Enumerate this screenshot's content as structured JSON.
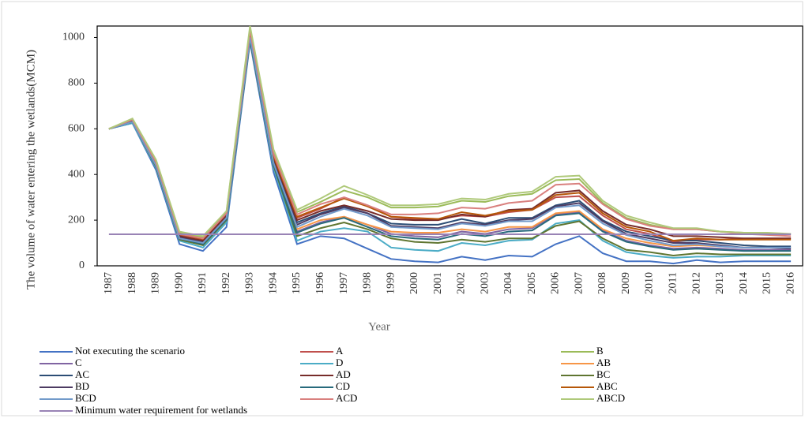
{
  "chart_data": {
    "type": "line",
    "y_label": "The volume of water entering  the wetlands(MCM)",
    "x_label": "Year",
    "categories": [
      "1987",
      "1988",
      "1989",
      "1990",
      "1991",
      "1992",
      "1993",
      "1994",
      "1995",
      "1996",
      "1997",
      "1998",
      "1999",
      "2000",
      "2001",
      "2002",
      "2003",
      "2004",
      "2005",
      "2006",
      "2007",
      "2008",
      "2009",
      "2010",
      "2011",
      "2012",
      "2013",
      "2014",
      "2015",
      "2016"
    ],
    "ylim": [
      0,
      1050
    ],
    "yticks": [
      0,
      200,
      400,
      600,
      800,
      1000
    ],
    "series": [
      {
        "name": "Not executing the scenario",
        "color": "#4472c4",
        "values": [
          600,
          625,
          420,
          95,
          65,
          170,
          980,
          410,
          95,
          130,
          120,
          75,
          30,
          20,
          15,
          40,
          25,
          45,
          40,
          95,
          130,
          55,
          20,
          20,
          10,
          25,
          15,
          20,
          20,
          20
        ]
      },
      {
        "name": "A",
        "color": "#c0504d",
        "values": [
          600,
          635,
          450,
          135,
          115,
          225,
          1015,
          475,
          210,
          250,
          300,
          265,
          215,
          205,
          205,
          220,
          215,
          235,
          245,
          300,
          305,
          220,
          160,
          140,
          105,
          115,
          115,
          120,
          120,
          120
        ]
      },
      {
        "name": "B",
        "color": "#9bbb59",
        "values": [
          600,
          640,
          460,
          145,
          125,
          235,
          1040,
          500,
          235,
          280,
          330,
          300,
          255,
          255,
          260,
          285,
          280,
          305,
          315,
          375,
          380,
          275,
          210,
          180,
          160,
          160,
          150,
          145,
          140,
          140
        ]
      },
      {
        "name": "C",
        "color": "#8064a2",
        "values": [
          600,
          630,
          440,
          120,
          100,
          210,
          1000,
          450,
          150,
          190,
          215,
          180,
          140,
          130,
          125,
          150,
          140,
          160,
          165,
          225,
          235,
          155,
          110,
          90,
          75,
          80,
          75,
          70,
          70,
          70
        ]
      },
      {
        "name": "D",
        "color": "#4bacc6",
        "values": [
          600,
          625,
          430,
          110,
          80,
          190,
          990,
          430,
          110,
          150,
          165,
          150,
          80,
          70,
          65,
          100,
          90,
          110,
          115,
          185,
          200,
          110,
          60,
          45,
          35,
          40,
          40,
          45,
          45,
          45
        ]
      },
      {
        "name": "AB",
        "color": "#f79646",
        "values": [
          600,
          635,
          445,
          130,
          110,
          220,
          1010,
          465,
          160,
          200,
          215,
          180,
          150,
          145,
          145,
          160,
          150,
          170,
          170,
          230,
          240,
          160,
          120,
          100,
          85,
          90,
          85,
          80,
          80,
          80
        ]
      },
      {
        "name": "AC",
        "color": "#2c4d75",
        "values": [
          600,
          630,
          440,
          125,
          105,
          215,
          1005,
          460,
          190,
          230,
          260,
          230,
          185,
          180,
          180,
          205,
          185,
          210,
          210,
          265,
          285,
          200,
          150,
          130,
          110,
          110,
          100,
          90,
          85,
          85
        ]
      },
      {
        "name": "AD",
        "color": "#772c2a",
        "values": [
          600,
          635,
          445,
          130,
          110,
          220,
          1010,
          465,
          200,
          240,
          265,
          240,
          205,
          200,
          200,
          225,
          215,
          245,
          250,
          320,
          330,
          240,
          180,
          160,
          130,
          130,
          125,
          120,
          120,
          120
        ]
      },
      {
        "name": "BC",
        "color": "#5f7530",
        "values": [
          600,
          630,
          435,
          115,
          90,
          200,
          990,
          440,
          130,
          165,
          190,
          160,
          120,
          105,
          100,
          115,
          105,
          120,
          120,
          175,
          195,
          120,
          70,
          60,
          45,
          55,
          50,
          50,
          50,
          50
        ]
      },
      {
        "name": "BD",
        "color": "#4d3b62",
        "values": [
          600,
          630,
          440,
          125,
          100,
          210,
          1000,
          455,
          180,
          225,
          255,
          230,
          175,
          170,
          165,
          190,
          180,
          200,
          205,
          260,
          275,
          195,
          140,
          120,
          100,
          100,
          90,
          80,
          80,
          75
        ]
      },
      {
        "name": "CD",
        "color": "#276a7c",
        "values": [
          600,
          630,
          440,
          120,
          95,
          205,
          995,
          445,
          145,
          185,
          210,
          170,
          130,
          120,
          115,
          140,
          130,
          150,
          155,
          220,
          230,
          150,
          105,
          85,
          70,
          75,
          70,
          65,
          65,
          65
        ]
      },
      {
        "name": "ABC",
        "color": "#b65708",
        "values": [
          600,
          640,
          450,
          140,
          118,
          230,
          1020,
          480,
          215,
          255,
          295,
          260,
          215,
          210,
          205,
          235,
          220,
          240,
          245,
          310,
          320,
          230,
          170,
          150,
          110,
          120,
          115,
          115,
          115,
          115
        ]
      },
      {
        "name": "BCD",
        "color": "#729aca",
        "values": [
          600,
          630,
          440,
          120,
          100,
          210,
          1000,
          450,
          170,
          215,
          250,
          220,
          170,
          165,
          160,
          185,
          175,
          195,
          195,
          255,
          265,
          185,
          135,
          110,
          90,
          95,
          85,
          80,
          80,
          80
        ]
      },
      {
        "name": "ACD",
        "color": "#d9807e",
        "values": [
          600,
          640,
          455,
          140,
          120,
          230,
          1030,
          490,
          225,
          270,
          300,
          265,
          225,
          225,
          230,
          255,
          250,
          275,
          285,
          355,
          360,
          270,
          205,
          175,
          160,
          160,
          150,
          140,
          135,
          130
        ]
      },
      {
        "name": "ABCD",
        "color": "#afc97a",
        "values": [
          600,
          645,
          465,
          150,
          130,
          240,
          1050,
          510,
          245,
          295,
          350,
          310,
          265,
          265,
          270,
          295,
          290,
          315,
          325,
          390,
          395,
          285,
          220,
          190,
          165,
          165,
          150,
          145,
          145,
          140
        ]
      },
      {
        "name": "Minimum water requirement for wetlands",
        "color": "#9983b5",
        "values": [
          138,
          138,
          138,
          138,
          138,
          138,
          138,
          138,
          138,
          138,
          138,
          138,
          138,
          138,
          138,
          138,
          138,
          138,
          138,
          138,
          138,
          138,
          138,
          138,
          138,
          138,
          138,
          138,
          138,
          138
        ]
      }
    ]
  }
}
